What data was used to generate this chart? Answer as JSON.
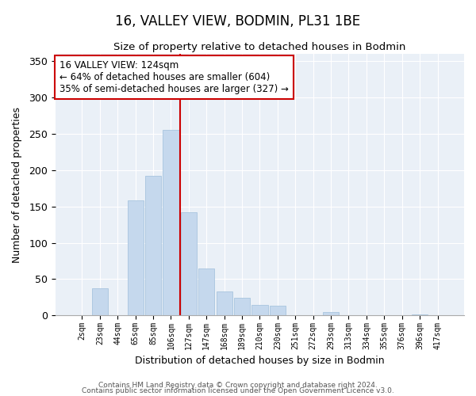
{
  "title": "16, VALLEY VIEW, BODMIN, PL31 1BE",
  "subtitle": "Size of property relative to detached houses in Bodmin",
  "xlabel": "Distribution of detached houses by size in Bodmin",
  "ylabel": "Number of detached properties",
  "bar_labels": [
    "2sqm",
    "23sqm",
    "44sqm",
    "65sqm",
    "85sqm",
    "106sqm",
    "127sqm",
    "147sqm",
    "168sqm",
    "189sqm",
    "210sqm",
    "230sqm",
    "251sqm",
    "272sqm",
    "293sqm",
    "313sqm",
    "334sqm",
    "355sqm",
    "376sqm",
    "396sqm",
    "417sqm"
  ],
  "bar_values": [
    0,
    37,
    0,
    158,
    192,
    255,
    142,
    65,
    33,
    24,
    15,
    13,
    0,
    0,
    5,
    0,
    0,
    0,
    0,
    1,
    0
  ],
  "bar_color": "#c5d8ed",
  "bar_edge_color": "#a8c4de",
  "property_line_x": 5.5,
  "property_line_color": "#cc0000",
  "annotation_box_text": "16 VALLEY VIEW: 124sqm\n← 64% of detached houses are smaller (604)\n35% of semi-detached houses are larger (327) →",
  "ylim": [
    0,
    360
  ],
  "yticks": [
    0,
    50,
    100,
    150,
    200,
    250,
    300,
    350
  ],
  "footer_line1": "Contains HM Land Registry data © Crown copyright and database right 2024.",
  "footer_line2": "Contains public sector information licensed under the Open Government Licence v3.0.",
  "background_color": "#eaf0f7"
}
